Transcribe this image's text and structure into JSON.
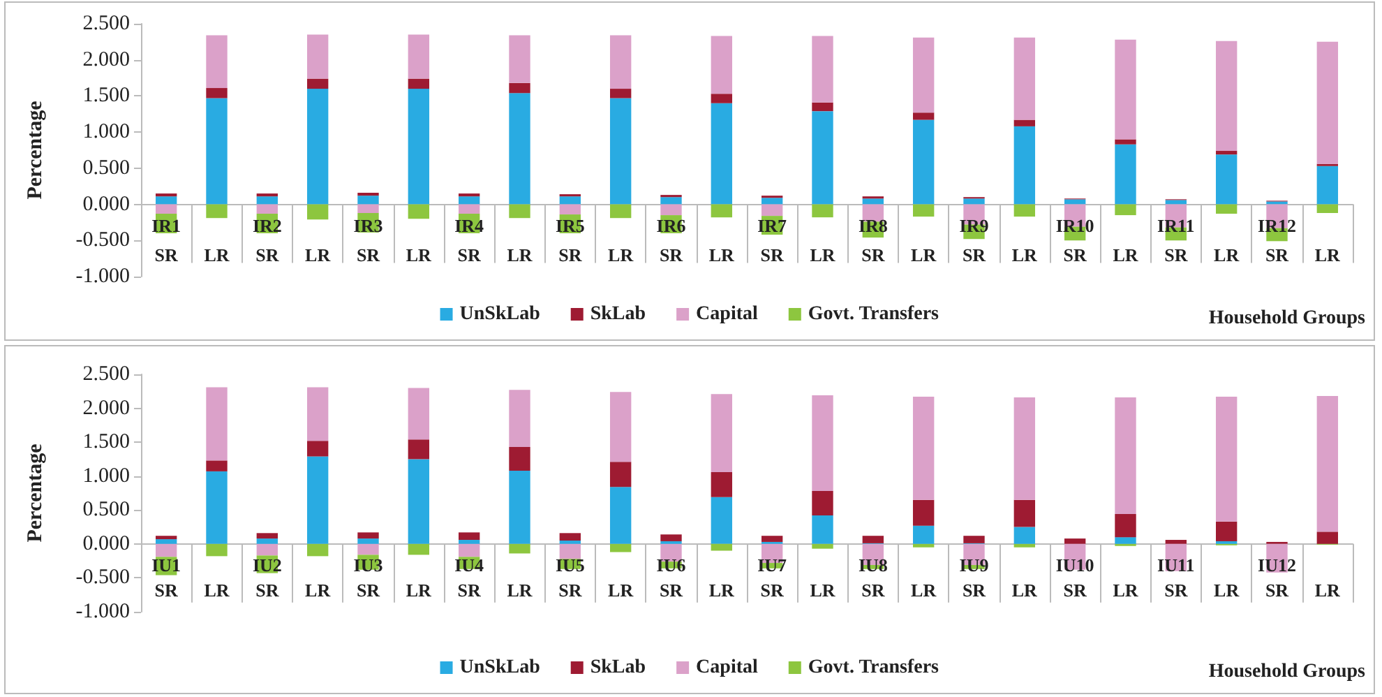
{
  "chart_data": [
    {
      "type": "bar",
      "stacked": true,
      "ylabel": "Percentage",
      "xlabel": "Household Groups",
      "legend": "bottom",
      "grid": false,
      "categories": [
        "SR",
        "LR",
        "SR",
        "LR",
        "SR",
        "LR",
        "SR",
        "LR",
        "SR",
        "LR",
        "SR",
        "LR",
        "SR",
        "LR",
        "SR",
        "LR",
        "SR",
        "LR",
        "SR",
        "LR",
        "SR",
        "LR",
        "SR",
        "LR"
      ],
      "ylim": [
        -1,
        2.5
      ],
      "yticks": [
        {
          "value": -1,
          "label": "-1.000"
        },
        {
          "value": -0.5,
          "label": "-0.500"
        },
        {
          "value": 0,
          "label": "0.000"
        },
        {
          "value": 0.5,
          "label": "0.500"
        },
        {
          "value": 1,
          "label": "1.000"
        },
        {
          "value": 1.5,
          "label": "1.500"
        },
        {
          "value": 2,
          "label": "2.000"
        },
        {
          "value": 2.5,
          "label": "2.500"
        }
      ],
      "annotations": [
        "IR1",
        "IR2",
        "IR3",
        "IR4",
        "IR5",
        "IR6",
        "IR7",
        "IR8",
        "IR9",
        "IR10",
        "IR11",
        "IR12"
      ],
      "series": [
        {
          "name": "UnSkLab",
          "color": "#29abe2",
          "values": [
            0.11,
            1.47,
            0.11,
            1.6,
            0.12,
            1.6,
            0.11,
            1.54,
            0.11,
            1.47,
            0.1,
            1.4,
            0.09,
            1.29,
            0.08,
            1.17,
            0.08,
            1.08,
            0.07,
            0.83,
            0.06,
            0.69,
            0.04,
            0.53
          ]
        },
        {
          "name": "SkLab",
          "color": "#9e1b32",
          "values": [
            0.04,
            0.14,
            0.04,
            0.14,
            0.04,
            0.14,
            0.04,
            0.14,
            0.03,
            0.13,
            0.03,
            0.13,
            0.03,
            0.12,
            0.03,
            0.1,
            0.02,
            0.09,
            0.01,
            0.07,
            0.01,
            0.05,
            0.01,
            0.03
          ]
        },
        {
          "name": "Capital",
          "color": "#dba1c9",
          "values": [
            -0.13,
            0.73,
            -0.13,
            0.61,
            -0.12,
            0.61,
            -0.13,
            0.66,
            -0.14,
            0.74,
            -0.15,
            0.8,
            -0.16,
            0.92,
            -0.24,
            1.04,
            -0.28,
            1.14,
            -0.31,
            1.38,
            -0.32,
            1.52,
            -0.33,
            1.69
          ]
        },
        {
          "name": "Govt. Transfers",
          "color": "#8dc63f",
          "values": [
            -0.27,
            -0.19,
            -0.27,
            -0.21,
            -0.27,
            -0.2,
            -0.27,
            -0.19,
            -0.26,
            -0.19,
            -0.25,
            -0.18,
            -0.26,
            -0.18,
            -0.22,
            -0.17,
            -0.2,
            -0.17,
            -0.19,
            -0.15,
            -0.18,
            -0.13,
            -0.18,
            -0.12
          ]
        }
      ]
    },
    {
      "type": "bar",
      "stacked": true,
      "ylabel": "Percentage",
      "xlabel": "Household Groups",
      "legend": "bottom",
      "grid": false,
      "categories": [
        "SR",
        "LR",
        "SR",
        "LR",
        "SR",
        "LR",
        "SR",
        "LR",
        "SR",
        "LR",
        "SR",
        "LR",
        "SR",
        "LR",
        "SR",
        "LR",
        "SR",
        "LR",
        "SR",
        "LR",
        "SR",
        "LR",
        "SR",
        "LR"
      ],
      "ylim": [
        -1,
        2.5
      ],
      "yticks": [
        {
          "value": -1,
          "label": "-1.000"
        },
        {
          "value": -0.5,
          "label": "-0.500"
        },
        {
          "value": 0,
          "label": "0.000"
        },
        {
          "value": 0.5,
          "label": "0.500"
        },
        {
          "value": 1,
          "label": "1.000"
        },
        {
          "value": 1.5,
          "label": "1.500"
        },
        {
          "value": 2,
          "label": "2.000"
        },
        {
          "value": 2.5,
          "label": "2.500"
        }
      ],
      "annotations": [
        "IU1",
        "IU2",
        "IU3",
        "IU4",
        "IU5",
        "IU6",
        "IU7",
        "IU8",
        "IU9",
        "IU10",
        "IU11",
        "IU12"
      ],
      "series": [
        {
          "name": "UnSkLab",
          "color": "#29abe2",
          "values": [
            0.07,
            1.07,
            0.08,
            1.29,
            0.08,
            1.25,
            0.06,
            1.08,
            0.05,
            0.84,
            0.04,
            0.69,
            0.03,
            0.42,
            0.01,
            0.27,
            0.01,
            0.25,
            0,
            0.1,
            0,
            0.04,
            0,
            0
          ]
        },
        {
          "name": "SkLab",
          "color": "#9e1b32",
          "values": [
            0.05,
            0.16,
            0.08,
            0.23,
            0.09,
            0.29,
            0.11,
            0.35,
            0.11,
            0.37,
            0.1,
            0.37,
            0.09,
            0.36,
            0.11,
            0.38,
            0.11,
            0.4,
            0.08,
            0.34,
            0.06,
            0.29,
            0.03,
            0.18
          ]
        },
        {
          "name": "Capital",
          "color": "#dba1c9",
          "values": [
            -0.19,
            1.08,
            -0.17,
            0.79,
            -0.16,
            0.76,
            -0.19,
            0.84,
            -0.22,
            1.03,
            -0.26,
            1.15,
            -0.28,
            1.41,
            -0.31,
            1.52,
            -0.31,
            1.51,
            -0.38,
            1.72,
            -0.4,
            1.84,
            -0.42,
            2.0
          ]
        },
        {
          "name": "Govt. Transfers",
          "color": "#8dc63f",
          "values": [
            -0.27,
            -0.18,
            -0.26,
            -0.18,
            -0.22,
            -0.16,
            -0.18,
            -0.14,
            -0.15,
            -0.12,
            -0.1,
            -0.1,
            -0.08,
            -0.07,
            -0.06,
            -0.05,
            -0.06,
            -0.05,
            null,
            -0.03,
            null,
            -0.02,
            null,
            -0.01
          ]
        }
      ]
    }
  ]
}
